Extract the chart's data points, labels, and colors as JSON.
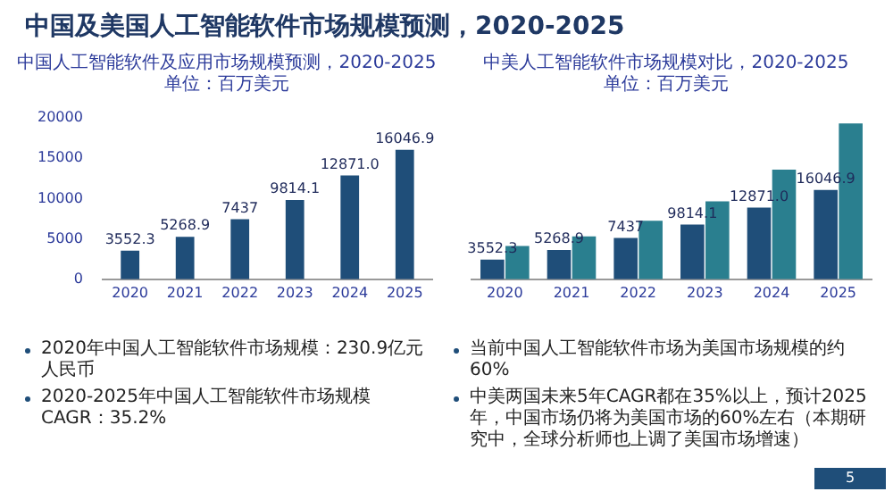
{
  "chart_data": [
    {
      "type": "bar",
      "title": "中国人工智能软件及应用市场规模预测，2020-2025",
      "subtitle": "单位：百万美元",
      "categories": [
        "2020",
        "2021",
        "2022",
        "2023",
        "2024",
        "2025"
      ],
      "series": [
        {
          "color": "#1f4e79",
          "values": [
            3552.3,
            5268.9,
            7437,
            9814.1,
            12871.0,
            16046.9
          ],
          "value_labels": [
            "3552.3",
            "5268.9",
            "7437",
            "9814.1",
            "12871.0",
            "16046.9"
          ]
        }
      ],
      "ylim": [
        0,
        20000
      ],
      "yticks": [
        0,
        5000,
        10000,
        15000,
        20000
      ],
      "grid": false,
      "legend": false,
      "annotations": [
        "中国及美国人工智能软件市场规模预测，2020-2025",
        "2020年中国人工智能软件市场规模：230.9亿元人民币",
        "2020-2025年中国人工智能软件市场规模CAGR：35.2%",
        "5"
      ]
    },
    {
      "type": "bar",
      "title": "中美人工智能软件市场规模对比，2020-2025",
      "subtitle": "单位：百万美元",
      "categories": [
        "2020",
        "2021",
        "2022",
        "2023",
        "2024",
        "2025"
      ],
      "ylim": [
        0,
        29000
      ],
      "tick_labels": "x",
      "legend": false,
      "series": [
        {
          "color": "#1f4e79",
          "values": [
            3552.3,
            5268.9,
            7437,
            9814.1,
            12871.0,
            16046.9
          ],
          "value_labels": [
            "3552.3",
            "5268.9",
            "7437",
            "9814.1",
            "12871.0",
            "16046.9"
          ]
        },
        {
          "color": "#2a7f8f",
          "values": [
            6000,
            7700,
            10500,
            14000,
            19700,
            28000
          ]
        }
      ],
      "annotations": [
        "当前中国人工智能软件市场为美国市场规模的约60%",
        "中美两国未来5年CAGR都在35%以上，预计2025年，中国市场仍将为美国市场的60%左右（本期研究中，全球分析师也上调了美国市场增速）"
      ]
    }
  ]
}
